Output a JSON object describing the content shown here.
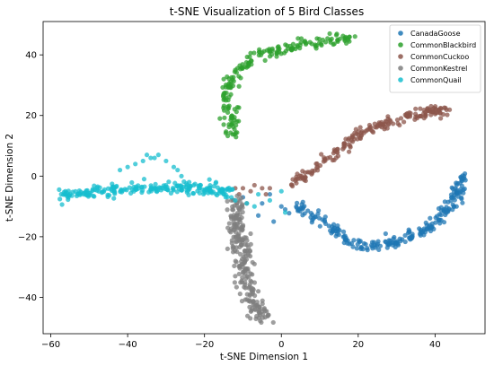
{
  "chart_data": {
    "type": "scatter",
    "title": "t-SNE Visualization of 5 Bird Classes",
    "xlabel": "t-SNE Dimension 1",
    "ylabel": "t-SNE Dimension 2",
    "xlim": [
      -62,
      53
    ],
    "ylim": [
      -52,
      51
    ],
    "xticks": [
      -60,
      -40,
      -20,
      0,
      20,
      40
    ],
    "yticks": [
      -40,
      -20,
      0,
      20,
      40
    ],
    "grid": false,
    "legend_position": "top-right",
    "series": [
      {
        "name": "CanadaGoose",
        "color": "#1f77b4",
        "path": [
          [
            3,
            -10
          ],
          [
            6,
            -11
          ],
          [
            10,
            -14
          ],
          [
            13,
            -17
          ],
          [
            17,
            -21
          ],
          [
            21,
            -23
          ],
          [
            25,
            -23
          ],
          [
            29,
            -22
          ],
          [
            33,
            -21
          ],
          [
            36,
            -19
          ],
          [
            38,
            -17
          ],
          [
            41,
            -14
          ],
          [
            43,
            -11
          ],
          [
            45,
            -8
          ],
          [
            46,
            -5
          ],
          [
            47,
            -2
          ],
          [
            48,
            0
          ]
        ],
        "spread": 0.9,
        "count": 240,
        "extra_points": [
          [
            -2,
            -15
          ],
          [
            -6,
            -13
          ],
          [
            -5,
            -9
          ],
          [
            -10,
            -7
          ],
          [
            0,
            -10
          ],
          [
            1,
            -11
          ],
          [
            -3,
            -6
          ]
        ]
      },
      {
        "name": "CommonBlackbird",
        "color": "#2ca02c",
        "path": [
          [
            -13,
            13
          ],
          [
            -12,
            16
          ],
          [
            -13,
            20
          ],
          [
            -14,
            25
          ],
          [
            -14,
            30
          ],
          [
            -12,
            34
          ],
          [
            -10,
            36
          ],
          [
            -7,
            39
          ],
          [
            -4,
            41
          ],
          [
            0,
            42
          ],
          [
            5,
            43
          ],
          [
            10,
            44
          ],
          [
            15,
            45
          ],
          [
            18,
            46
          ]
        ],
        "spread": 0.9,
        "count": 190,
        "extra_points": [
          [
            -15,
            17
          ],
          [
            -16,
            19
          ]
        ]
      },
      {
        "name": "CommonCuckoo",
        "color": "#8c564b",
        "path": [
          [
            2,
            -3
          ],
          [
            5,
            -1
          ],
          [
            8,
            2
          ],
          [
            11,
            5
          ],
          [
            14,
            8
          ],
          [
            18,
            12
          ],
          [
            22,
            15
          ],
          [
            26,
            17
          ],
          [
            30,
            19
          ],
          [
            34,
            20
          ],
          [
            38,
            21
          ],
          [
            41,
            22
          ],
          [
            43,
            22
          ]
        ],
        "spread": 0.9,
        "count": 190,
        "extra_points": [
          [
            -12,
            -4
          ],
          [
            -10,
            -4
          ],
          [
            -7,
            -3
          ],
          [
            -5,
            -4
          ],
          [
            -3,
            -4
          ],
          [
            -8,
            -5
          ],
          [
            -11,
            -6
          ],
          [
            -4,
            -6
          ]
        ]
      },
      {
        "name": "CommonKestrel",
        "color": "#7f7f7f",
        "path": [
          [
            -11,
            -7
          ],
          [
            -12,
            -11
          ],
          [
            -12,
            -16
          ],
          [
            -11,
            -21
          ],
          [
            -10,
            -26
          ],
          [
            -10,
            -31
          ],
          [
            -9,
            -36
          ],
          [
            -8,
            -40
          ],
          [
            -7,
            -43
          ],
          [
            -5,
            -46
          ],
          [
            -4,
            -47
          ]
        ],
        "spread": 1.2,
        "count": 230,
        "extra_points": [
          [
            -13,
            -8
          ],
          [
            -9,
            -9
          ],
          [
            -13,
            -14
          ],
          [
            -8,
            -19
          ],
          [
            -14,
            -24
          ],
          [
            -7,
            -29
          ],
          [
            -12,
            -33
          ],
          [
            -6,
            -38
          ]
        ]
      },
      {
        "name": "CommonQuail",
        "color": "#17becf",
        "path": [
          [
            -57,
            -6
          ],
          [
            -53,
            -6
          ],
          [
            -48,
            -5
          ],
          [
            -43,
            -5
          ],
          [
            -38,
            -4
          ],
          [
            -33,
            -4
          ],
          [
            -28,
            -4
          ],
          [
            -24,
            -4
          ],
          [
            -20,
            -4
          ],
          [
            -17,
            -5
          ],
          [
            -13,
            -5
          ]
        ],
        "spread": 0.9,
        "count": 220,
        "extra_points": [
          [
            -35,
            7
          ],
          [
            -34,
            6
          ],
          [
            -33,
            6
          ],
          [
            -36,
            5
          ],
          [
            -32,
            7
          ],
          [
            -40,
            3
          ],
          [
            -42,
            2
          ],
          [
            -38,
            4
          ],
          [
            -30,
            5
          ],
          [
            -28,
            3
          ],
          [
            -27,
            2
          ],
          [
            -26,
            0
          ],
          [
            -24,
            -2
          ],
          [
            -21,
            -3
          ],
          [
            -19,
            -4
          ],
          [
            -17,
            -2
          ],
          [
            -16,
            -5
          ],
          [
            -13,
            -7
          ],
          [
            -12,
            -8
          ],
          [
            -9,
            -9
          ],
          [
            -7,
            -10
          ],
          [
            -3,
            -8
          ],
          [
            0,
            -5
          ],
          [
            1,
            -12
          ],
          [
            -6,
            -6
          ]
        ]
      }
    ]
  }
}
